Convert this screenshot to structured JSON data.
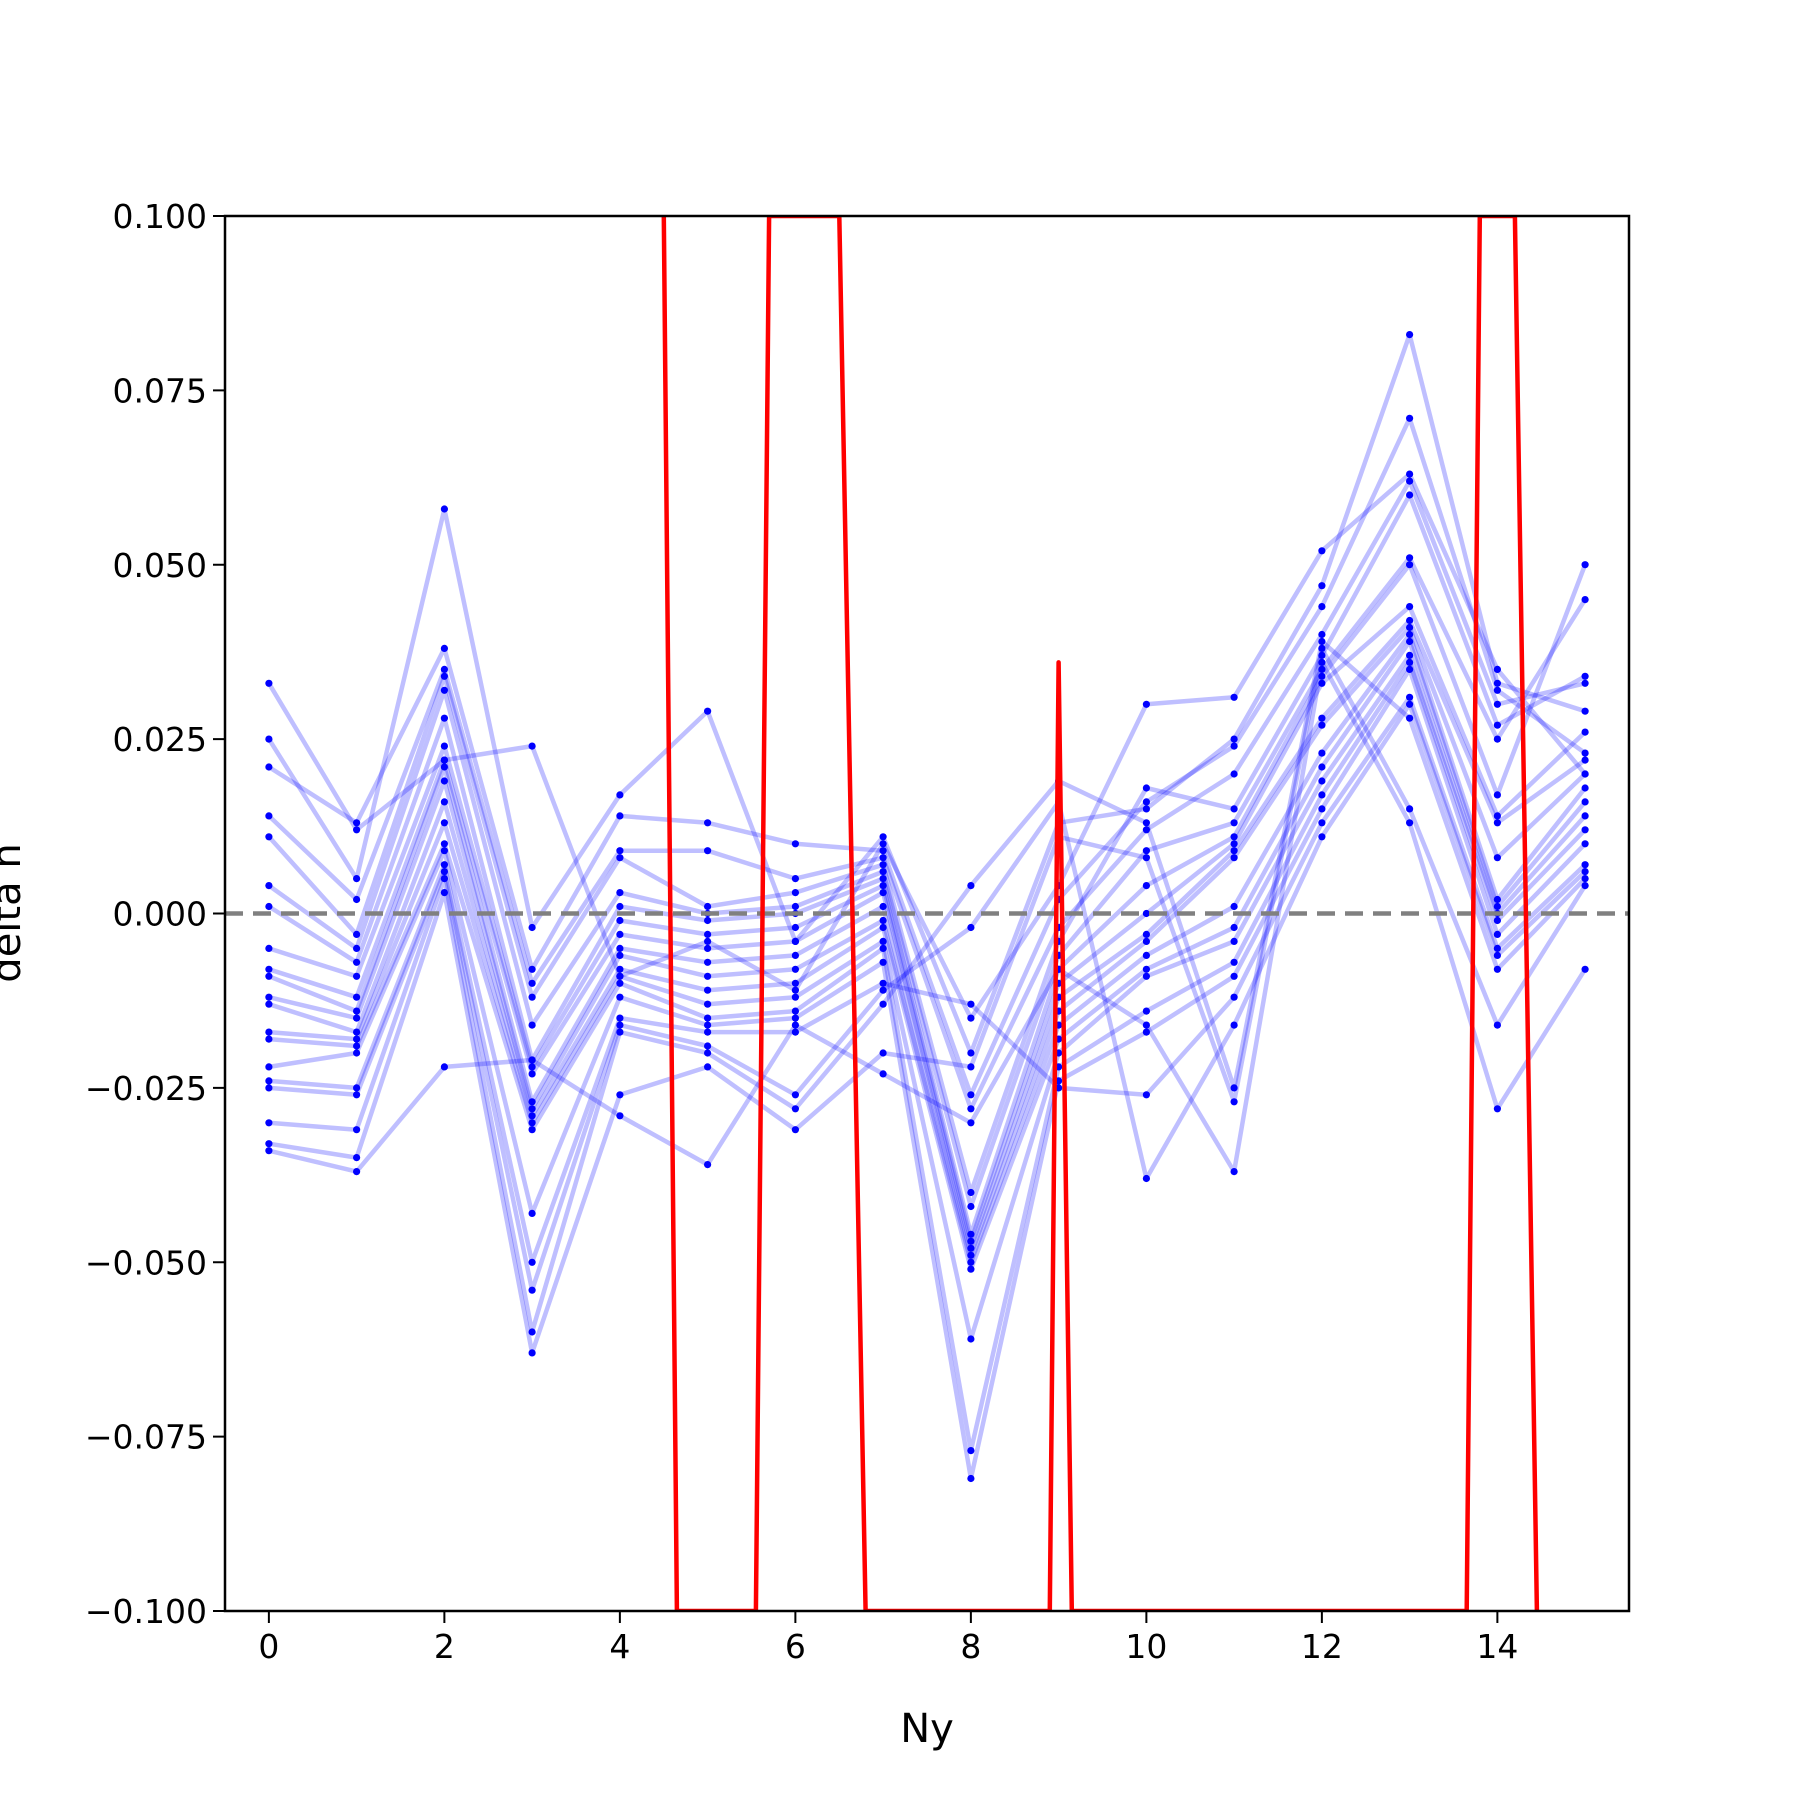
{
  "chart_data": {
    "type": "line",
    "xlabel": "Ny",
    "ylabel": "delta n",
    "xlim": [
      -0.5,
      15.5
    ],
    "ylim": [
      -0.1,
      0.1
    ],
    "x_ticks": [
      0,
      2,
      4,
      6,
      8,
      10,
      12,
      14
    ],
    "x_tick_labels": [
      "0",
      "2",
      "4",
      "6",
      "8",
      "10",
      "12",
      "14"
    ],
    "y_ticks": [
      -0.1,
      -0.075,
      -0.05,
      -0.025,
      0.0,
      0.025,
      0.05,
      0.075,
      0.1
    ],
    "y_tick_labels": [
      "−0.100",
      "−0.075",
      "−0.050",
      "−0.025",
      "0.000",
      "0.025",
      "0.050",
      "0.075",
      "0.100"
    ],
    "grid": false,
    "reference_line": {
      "y": 0.0,
      "style": "dashed",
      "color": "#808080"
    },
    "x": [
      0,
      1,
      2,
      3,
      4,
      5,
      6,
      7,
      8,
      9,
      10,
      11,
      12,
      13,
      14,
      15
    ],
    "series": [
      {
        "color": "#0000ff",
        "values": [
          0.033,
          0.012,
          0.022,
          0.024,
          -0.009,
          -0.004,
          -0.011,
          0.01,
          -0.015,
          0.004,
          0.03,
          0.031,
          0.052,
          0.063,
          0.035,
          0.02
        ]
      },
      {
        "color": "#0000ff",
        "values": [
          0.025,
          0.005,
          0.058,
          -0.002,
          0.017,
          0.029,
          -0.004,
          0.011,
          -0.02,
          0.013,
          0.015,
          0.025,
          0.047,
          0.083,
          0.033,
          0.029
        ]
      },
      {
        "color": "#0000ff",
        "values": [
          0.021,
          0.013,
          0.038,
          -0.008,
          0.014,
          0.013,
          0.01,
          0.009,
          -0.026,
          0.002,
          0.016,
          0.024,
          0.044,
          0.071,
          0.032,
          0.023
        ]
      },
      {
        "color": "#0000ff",
        "values": [
          0.014,
          0.002,
          0.035,
          -0.01,
          0.009,
          0.009,
          0.005,
          0.008,
          -0.028,
          -0.002,
          0.012,
          0.02,
          0.04,
          0.062,
          0.03,
          0.033
        ]
      },
      {
        "color": "#0000ff",
        "values": [
          0.011,
          -0.003,
          0.034,
          -0.012,
          0.008,
          0.001,
          0.003,
          0.007,
          -0.04,
          -0.004,
          0.018,
          0.015,
          0.037,
          0.06,
          0.027,
          0.034
        ]
      },
      {
        "color": "#0000ff",
        "values": [
          0.004,
          -0.005,
          0.032,
          -0.016,
          0.003,
          0.0,
          0.001,
          0.006,
          -0.042,
          -0.006,
          0.009,
          0.013,
          0.035,
          0.051,
          0.025,
          0.045
        ]
      },
      {
        "color": "#0000ff",
        "values": [
          0.001,
          -0.007,
          0.028,
          -0.021,
          0.001,
          -0.001,
          0.0,
          0.005,
          -0.046,
          -0.008,
          0.004,
          0.011,
          0.034,
          0.05,
          0.017,
          0.05
        ]
      },
      {
        "color": "#0000ff",
        "values": [
          -0.005,
          -0.009,
          0.024,
          -0.022,
          -0.001,
          -0.003,
          -0.002,
          0.004,
          -0.047,
          -0.01,
          0.0,
          0.01,
          0.033,
          0.044,
          0.014,
          0.026
        ]
      },
      {
        "color": "#0000ff",
        "values": [
          -0.008,
          -0.012,
          0.022,
          -0.023,
          -0.003,
          -0.005,
          -0.004,
          0.003,
          -0.048,
          -0.012,
          -0.003,
          0.009,
          0.028,
          0.042,
          0.013,
          0.022
        ]
      },
      {
        "color": "#0000ff",
        "values": [
          -0.009,
          -0.014,
          0.021,
          -0.027,
          -0.005,
          -0.007,
          -0.006,
          0.001,
          -0.049,
          -0.014,
          -0.004,
          0.008,
          0.027,
          0.041,
          0.008,
          0.02
        ]
      },
      {
        "color": "#0000ff",
        "values": [
          -0.012,
          -0.015,
          0.019,
          -0.028,
          -0.006,
          -0.009,
          -0.008,
          -0.001,
          -0.05,
          -0.016,
          -0.006,
          0.001,
          0.023,
          0.04,
          0.002,
          0.018
        ]
      },
      {
        "color": "#0000ff",
        "values": [
          -0.013,
          -0.017,
          0.016,
          -0.029,
          -0.008,
          -0.011,
          -0.01,
          -0.002,
          -0.051,
          -0.018,
          -0.008,
          -0.002,
          0.021,
          0.039,
          0.001,
          0.016
        ]
      },
      {
        "color": "#0000ff",
        "values": [
          -0.017,
          -0.018,
          0.013,
          -0.03,
          -0.009,
          -0.013,
          -0.012,
          -0.004,
          -0.061,
          -0.02,
          -0.009,
          -0.004,
          0.019,
          0.037,
          0.0,
          0.014
        ]
      },
      {
        "color": "#0000ff",
        "values": [
          -0.018,
          -0.019,
          0.01,
          -0.031,
          -0.01,
          -0.015,
          -0.014,
          -0.005,
          -0.077,
          -0.022,
          -0.014,
          -0.007,
          0.017,
          0.036,
          -0.001,
          0.012
        ]
      },
      {
        "color": "#0000ff",
        "values": [
          -0.022,
          -0.02,
          0.009,
          -0.043,
          -0.012,
          -0.016,
          -0.015,
          -0.007,
          -0.081,
          -0.024,
          -0.017,
          -0.009,
          0.015,
          0.035,
          -0.003,
          0.01
        ]
      },
      {
        "color": "#0000ff",
        "values": [
          -0.024,
          -0.025,
          0.007,
          -0.05,
          -0.015,
          -0.017,
          -0.017,
          -0.01,
          -0.013,
          -0.025,
          -0.026,
          -0.012,
          0.013,
          0.031,
          -0.005,
          0.007
        ]
      },
      {
        "color": "#0000ff",
        "values": [
          -0.025,
          -0.026,
          0.006,
          -0.054,
          -0.016,
          -0.019,
          -0.026,
          -0.011,
          -0.002,
          0.016,
          -0.038,
          -0.016,
          0.011,
          0.03,
          -0.006,
          0.006
        ]
      },
      {
        "color": "#0000ff",
        "values": [
          -0.03,
          -0.031,
          0.005,
          -0.06,
          -0.017,
          -0.02,
          -0.028,
          -0.013,
          0.004,
          0.019,
          0.013,
          -0.025,
          0.039,
          0.028,
          -0.008,
          0.005
        ]
      },
      {
        "color": "#0000ff",
        "values": [
          -0.033,
          -0.035,
          0.003,
          -0.063,
          -0.026,
          -0.022,
          -0.031,
          -0.02,
          -0.022,
          0.011,
          0.008,
          -0.027,
          0.038,
          0.015,
          -0.016,
          0.004
        ]
      },
      {
        "color": "#0000ff",
        "values": [
          -0.034,
          -0.037,
          -0.022,
          -0.021,
          -0.029,
          -0.036,
          -0.016,
          -0.023,
          -0.03,
          -0.008,
          -0.016,
          -0.037,
          0.036,
          0.013,
          -0.028,
          -0.008
        ]
      }
    ],
    "overlay_series": {
      "color": "#ff0000",
      "x": [
        4.5,
        4.65,
        5.55,
        5.7,
        6.5,
        6.8,
        8.9,
        9.0,
        9.15,
        13.65,
        13.8,
        14.2,
        14.45
      ],
      "values": [
        0.1,
        -0.1,
        -0.1,
        0.1,
        0.1,
        -0.1,
        -0.1,
        0.036,
        -0.1,
        -0.1,
        0.1,
        0.1,
        -0.1
      ]
    }
  }
}
